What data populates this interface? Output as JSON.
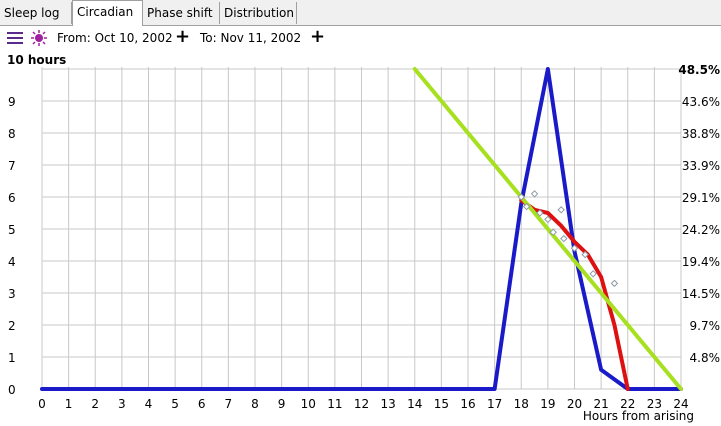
{
  "tabs": [
    {
      "label": "Sleep log",
      "active": false
    },
    {
      "label": "Circadian",
      "active": true
    },
    {
      "label": "Phase shift",
      "active": false
    },
    {
      "label": "Distribution",
      "active": false
    }
  ],
  "toolbar": {
    "menu_icon": "hamburger-icon",
    "logo_icon": "purple-burst-icon",
    "from_label": "From: Oct 10, 2002",
    "to_label": "To: Nov 11, 2002",
    "plus_glyph": "+"
  },
  "chart_data": {
    "type": "line",
    "title": "",
    "ylabel": "10 hours",
    "xlabel": "Hours from arising",
    "xlim": [
      0,
      24
    ],
    "ylim": [
      0,
      10
    ],
    "x_ticks": [
      "0",
      "1",
      "2",
      "3",
      "4",
      "5",
      "6",
      "7",
      "8",
      "9",
      "10",
      "11",
      "12",
      "13",
      "14",
      "15",
      "16",
      "17",
      "18",
      "19",
      "20",
      "21",
      "22",
      "23",
      "24"
    ],
    "y_ticks": [
      "0",
      "1",
      "2",
      "3",
      "4",
      "5",
      "6",
      "7",
      "8",
      "9"
    ],
    "right_ticks": [
      "48.5%",
      "43.6%",
      "38.8%",
      "33.9%",
      "29.1%",
      "24.2%",
      "19.4%",
      "14.5%",
      "9.7%",
      "4.8%"
    ],
    "grid": true,
    "colors": {
      "blue": "#1a1ac8",
      "red": "#dd1111",
      "green": "#a6e01e",
      "points": "#8c9aa6",
      "grid": "#c8c8c8"
    },
    "series": [
      {
        "color": "blue",
        "x": [
          0,
          17,
          18,
          19,
          20,
          21,
          22,
          23,
          24
        ],
        "y": [
          0,
          0,
          5.8,
          10,
          4.3,
          0.6,
          0,
          0,
          0
        ]
      },
      {
        "color": "red",
        "x": [
          18,
          18.5,
          19,
          19.5,
          20,
          20.5,
          21,
          21.5,
          22
        ],
        "y": [
          5.9,
          5.6,
          5.5,
          5.1,
          4.6,
          4.2,
          3.5,
          2,
          0
        ]
      },
      {
        "color": "green",
        "x": [
          14,
          24
        ],
        "y": [
          10,
          0
        ]
      }
    ],
    "scatter": {
      "x": [
        18,
        18.2,
        18.5,
        18.7,
        19,
        19.2,
        19.5,
        19.6,
        20,
        20.4,
        20.7,
        21.5
      ],
      "y": [
        6.0,
        5.7,
        6.1,
        5.5,
        5.3,
        4.9,
        5.6,
        4.7,
        4.4,
        4.2,
        3.6,
        3.3
      ]
    }
  }
}
